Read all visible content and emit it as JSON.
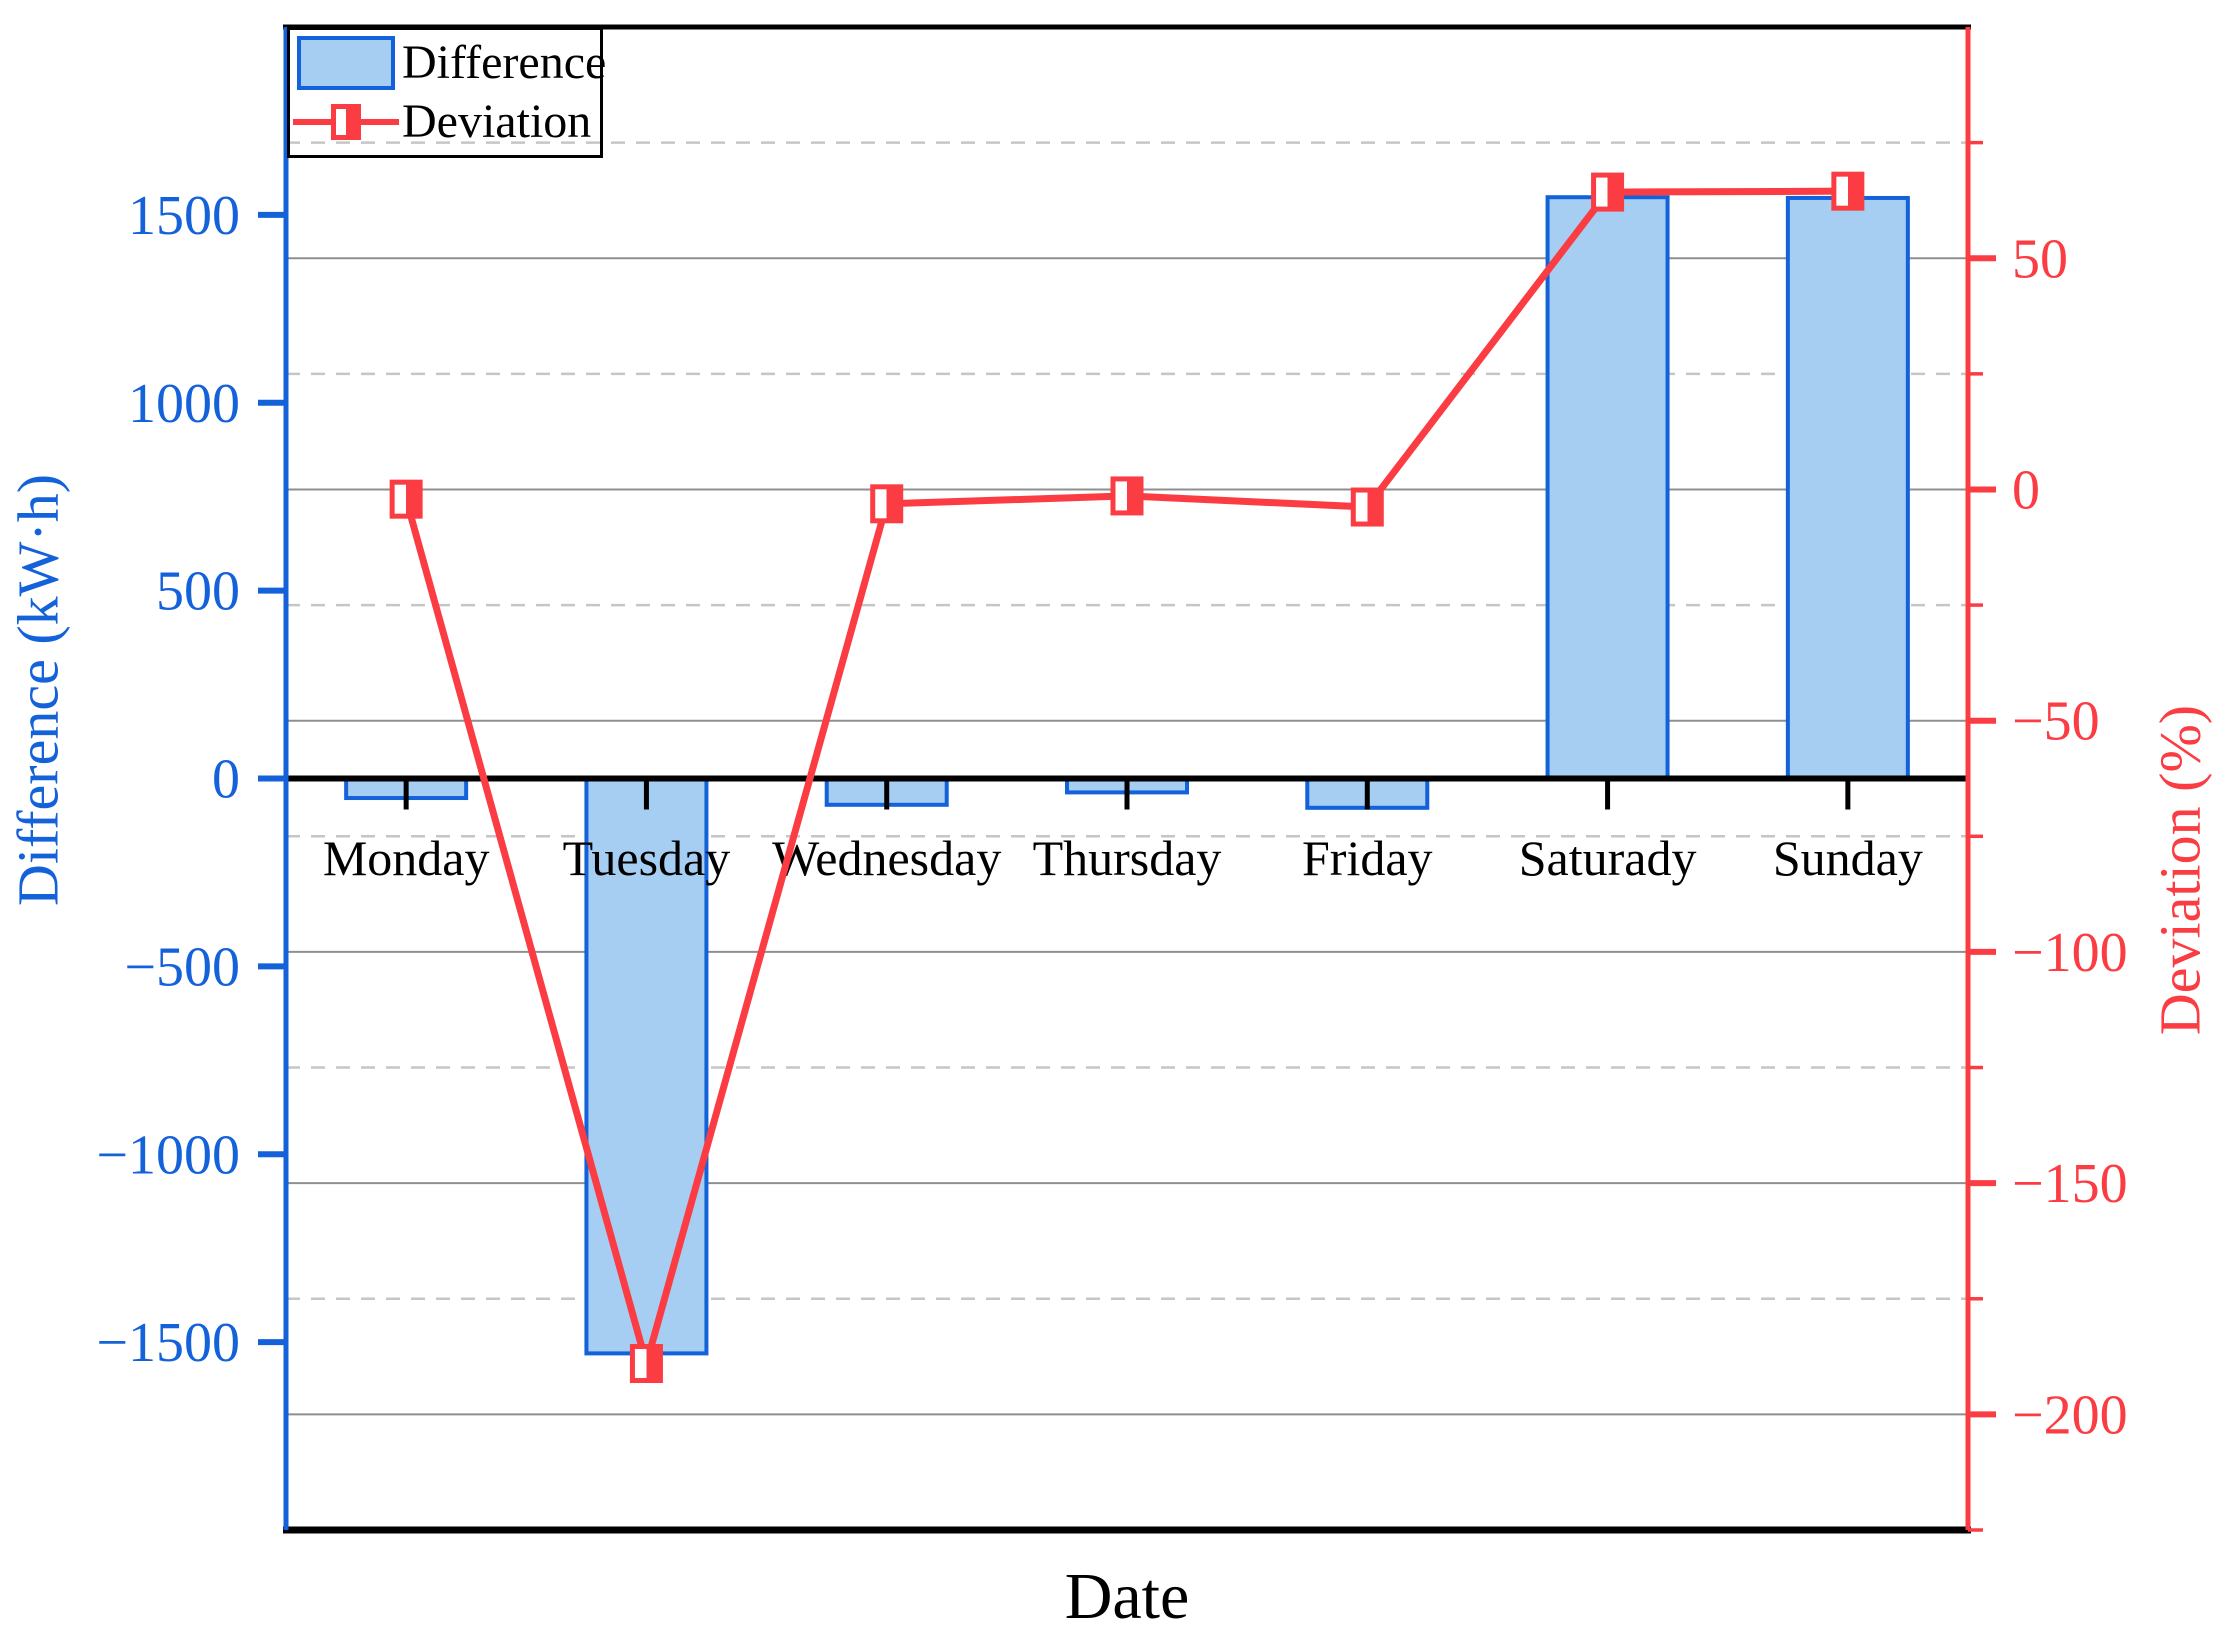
{
  "figure": {
    "background": "#ffffff"
  },
  "legend": {
    "position": "top-left",
    "items": [
      {
        "label": "Difference",
        "swatch": "bar-swatch-icon"
      },
      {
        "label": "Deviation",
        "swatch": "line-marker-icon"
      }
    ]
  },
  "axes": {
    "x": {
      "title": "Date",
      "tick_labels": [
        "Monday",
        "Tuesday",
        "Wednesday",
        "Thursday",
        "Friday",
        "Saturady",
        "Sunday"
      ]
    },
    "y_left": {
      "title": "Difference (kW·h)",
      "min": -2000,
      "max": 2000,
      "major_ticks": [
        1500,
        1000,
        500,
        0,
        -500,
        -1000,
        -1500
      ]
    },
    "y_right": {
      "title": "Deviation (%)",
      "min": -225,
      "max": 100,
      "major_ticks": [
        50,
        0,
        -50,
        -100,
        -150,
        -200
      ],
      "minor_ticks": [
        75,
        25,
        -25,
        -75,
        -125,
        -175,
        -225
      ]
    }
  },
  "chart_data": {
    "type": "bar+line",
    "categories": [
      "Monday",
      "Tuesday",
      "Wednesday",
      "Thursday",
      "Friday",
      "Saturady",
      "Sunday"
    ],
    "series": [
      {
        "name": "Difference",
        "type": "bar",
        "axis": "left",
        "unit": "kW·h",
        "values": [
          -52,
          -1530,
          -70,
          -37,
          -78,
          1547,
          1545
        ]
      },
      {
        "name": "Deviation",
        "type": "line",
        "axis": "right",
        "unit": "%",
        "values": [
          -2.1,
          -189,
          -3.1,
          -1.4,
          -3.8,
          64.3,
          64.5
        ]
      }
    ],
    "xlabel": "Date",
    "ylabel_left": "Difference (kW·h)",
    "ylabel_right": "Deviation (%)",
    "ylim_left": [
      -2000,
      2000
    ],
    "ylim_right": [
      -225,
      100
    ],
    "grid": {
      "solid_lines_at_right_axis_majors": true,
      "dashed_lines_at_right_axis_minors": true
    },
    "legend_position": "top-left"
  },
  "style": {
    "blue": "#1462d9",
    "bar_fill": "#a6cdf2",
    "red": "#fb3c43",
    "grid_major": "#8f8f8f",
    "grid_minor": "#c6c6c6",
    "black": "#000000"
  }
}
